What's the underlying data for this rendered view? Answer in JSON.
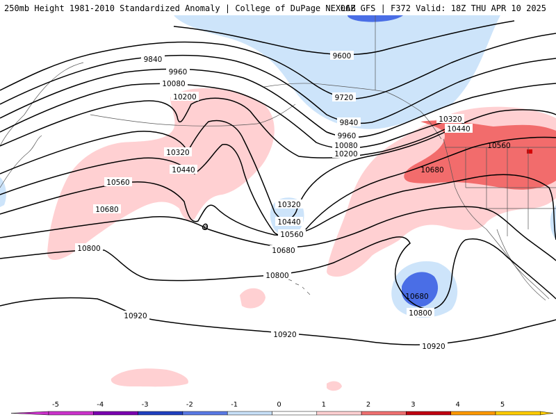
{
  "header": {
    "title_left": "250mb Height 1981-2010 Standardized Anomaly | College of DuPage NEXLAB",
    "title_right": "06Z GFS | F372 Valid: 18Z THU APR 10 2025"
  },
  "contour_labels": {
    "l9600": "9600",
    "l9720": "9720",
    "l9840a": "9840",
    "l9840b": "9840",
    "l9960a": "9960",
    "l9960b": "9960",
    "l10080a": "10080",
    "l10080b": "10080",
    "l10200a": "10200",
    "l10200b": "10200",
    "l10320a": "10320",
    "l10320b": "10320",
    "l10320c": "10320",
    "l10440a": "10440",
    "l10440b": "10440",
    "l10440c": "10440",
    "l10560a": "10560",
    "l10560b": "10560",
    "l10560c": "10560",
    "l10680a": "10680",
    "l10680b": "10680",
    "l10680c": "10680",
    "l10680d": "10680",
    "l10800a": "10800",
    "l10800b": "10800",
    "l10800c": "10800",
    "l10920a": "10920",
    "l10920b": "10920",
    "l10920c": "10920",
    "l0": "0"
  },
  "colorbar": {
    "ticks": [
      "-5",
      "-4",
      "-3",
      "-2",
      "-1",
      "0",
      "1",
      "2",
      "3",
      "4",
      "5"
    ],
    "colors": [
      "#cc33cc",
      "#7a00b0",
      "#2040c0",
      "#5a7ae6",
      "#c8e0f8",
      "#ffffff",
      "#ffd0d2",
      "#f07070",
      "#c00010",
      "#ff9900",
      "#ffcc00"
    ]
  },
  "fill_colors": {
    "positive_1": "#ffd0d2",
    "positive_2": "#f26c6c",
    "positive_3": "#d40000",
    "negative_1": "#cde4fa",
    "negative_2": "#4a6ee6"
  }
}
